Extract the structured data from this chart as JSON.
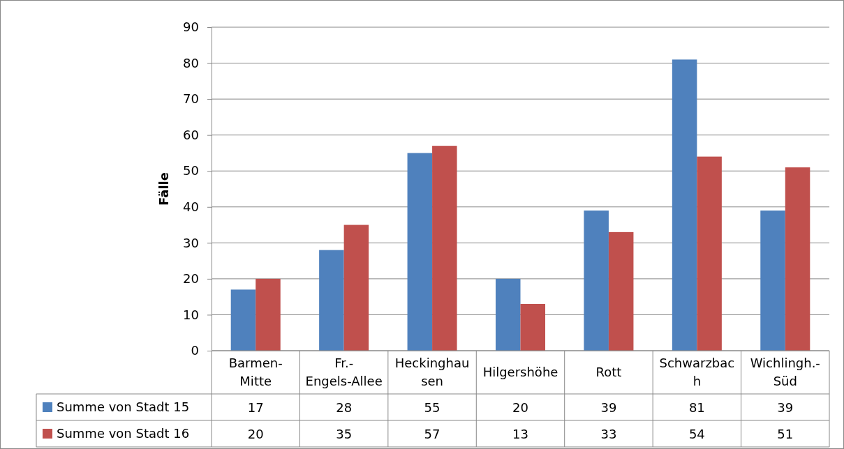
{
  "chart_data": {
    "type": "bar",
    "ylabel": "Fälle",
    "categories": [
      "Barmen-Mitte",
      "Fr.-Engels-Allee",
      "Heckinghausen",
      "Hilgershöhe",
      "Rott",
      "Schwarzbach",
      "Wichlingh.-Süd"
    ],
    "series": [
      {
        "name": "Summe von Stadt 15",
        "color": "#4f81bd",
        "values": [
          17,
          28,
          55,
          20,
          39,
          81,
          39
        ]
      },
      {
        "name": "Summe von Stadt 16",
        "color": "#c0504d",
        "values": [
          20,
          35,
          57,
          13,
          33,
          54,
          51
        ]
      }
    ],
    "ylim": [
      0,
      90
    ],
    "yticks": [
      0,
      10,
      20,
      30,
      40,
      50,
      60,
      70,
      80,
      90
    ],
    "grid": "y",
    "legend": "bottom",
    "data_labels": true
  }
}
